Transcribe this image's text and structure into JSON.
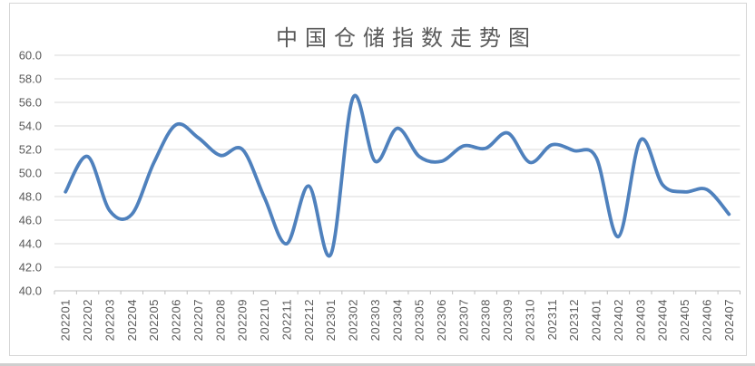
{
  "window": {
    "border_color": "#d6d6d6",
    "background": "#ffffff"
  },
  "chart_data": {
    "type": "line",
    "title": "中国仓储指数走势图",
    "categories": [
      "202201",
      "202202",
      "202203",
      "202204",
      "202205",
      "202206",
      "202207",
      "202208",
      "202209",
      "202210",
      "202211",
      "202212",
      "202301",
      "202302",
      "202303",
      "202304",
      "202305",
      "202306",
      "202307",
      "202308",
      "202309",
      "202310",
      "202311",
      "202312",
      "202401",
      "202402",
      "202403",
      "202404",
      "202405",
      "202406",
      "202407"
    ],
    "values": [
      48.4,
      51.4,
      46.8,
      46.5,
      50.9,
      54.1,
      53.0,
      51.5,
      52.0,
      47.9,
      44.0,
      48.9,
      43.1,
      56.4,
      51.0,
      53.8,
      51.4,
      51.0,
      52.3,
      52.1,
      53.4,
      50.9,
      52.4,
      51.9,
      51.3,
      44.6,
      52.8,
      49.0,
      48.4,
      48.6,
      46.5
    ],
    "ylim": [
      40.0,
      60.0
    ],
    "y_tick_step": 2.0,
    "y_tick_labels": [
      "60.0",
      "58.0",
      "56.0",
      "54.0",
      "52.0",
      "50.0",
      "48.0",
      "46.0",
      "44.0",
      "42.0",
      "40.0"
    ],
    "xlabel": "",
    "ylabel": "",
    "grid": true,
    "legend": "none",
    "smoothed": true,
    "x_labels_rotated_degrees": 90,
    "line_color": "#4F81BD",
    "title_color": "#595959",
    "axis_label_color": "#595959",
    "gridline_color": "#D9D9D9",
    "axis_line_color": "#BFBFBF"
  }
}
